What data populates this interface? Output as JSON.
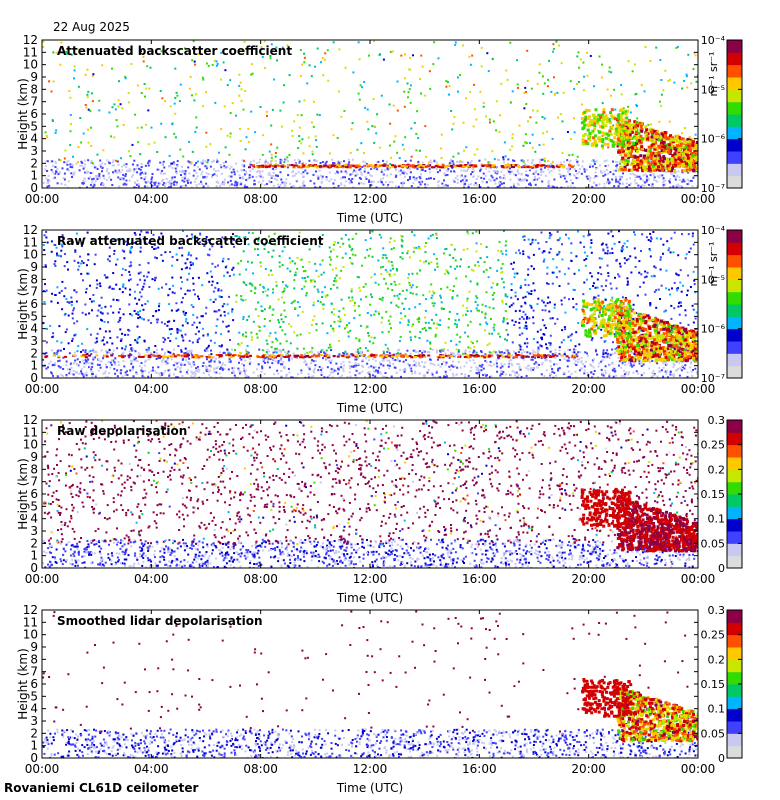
{
  "header": {
    "date": "22 Aug 2025"
  },
  "footer": {
    "station": "Rovaniemi CL61D ceilometer"
  },
  "colors": {
    "colormap": [
      "#dcdcdc",
      "#c8c8f0",
      "#4040ff",
      "#0000cc",
      "#00b4ff",
      "#00c864",
      "#32dc00",
      "#c8e600",
      "#ffc800",
      "#ff5000",
      "#d20000",
      "#8c0046"
    ],
    "frame": "#000000",
    "background": "#ffffff"
  },
  "chart_data": [
    {
      "type": "heatmap",
      "title": "Attenuated backscatter coefficient",
      "xlabel": "Time (UTC)",
      "ylabel": "Height (km)",
      "xticks": [
        "00:00",
        "04:00",
        "08:00",
        "12:00",
        "16:00",
        "20:00",
        "00:00"
      ],
      "xlim_hours": [
        0,
        24
      ],
      "yticks": [
        "0",
        "1",
        "2",
        "3",
        "4",
        "5",
        "6",
        "7",
        "8",
        "9",
        "10",
        "11",
        "12"
      ],
      "ylim": [
        0,
        12
      ],
      "colorbar": {
        "scale": "log",
        "range": [
          1e-07,
          0.0001
        ],
        "unit": "m⁻¹ sr⁻¹",
        "ticks": [
          "10⁻⁷",
          "10⁻⁶",
          "10⁻⁵",
          "10⁻⁴"
        ]
      },
      "kind": "backscatter",
      "noise_level": 0.35,
      "features": [
        {
          "name": "boundary layer",
          "t": [
            0,
            24
          ],
          "h": [
            0,
            2.5
          ],
          "level": "low"
        },
        {
          "name": "thin cloud layer",
          "t": [
            7.5,
            19.5
          ],
          "h": [
            1.7,
            2.0
          ],
          "level": "high"
        },
        {
          "name": "mid-level cloud",
          "t": [
            19.5,
            21.5
          ],
          "h": [
            3.5,
            6.5
          ],
          "level": "mid"
        },
        {
          "name": "dense cloud",
          "t": [
            21,
            24
          ],
          "h": [
            1.5,
            6.0
          ],
          "level": "very high"
        }
      ]
    },
    {
      "type": "heatmap",
      "title": "Raw attenuated backscatter coefficient",
      "xlabel": "Time (UTC)",
      "ylabel": "Height (km)",
      "xticks": [
        "00:00",
        "04:00",
        "08:00",
        "12:00",
        "16:00",
        "20:00",
        "00:00"
      ],
      "xlim_hours": [
        0,
        24
      ],
      "yticks": [
        "0",
        "1",
        "2",
        "3",
        "4",
        "5",
        "6",
        "7",
        "8",
        "9",
        "10",
        "11",
        "12"
      ],
      "ylim": [
        0,
        12
      ],
      "colorbar": {
        "scale": "log",
        "range": [
          1e-07,
          0.0001
        ],
        "unit": "m⁻¹ sr⁻¹",
        "ticks": [
          "10⁻⁷",
          "10⁻⁶",
          "10⁻⁵",
          "10⁻⁴"
        ]
      },
      "kind": "raw",
      "noise_level": 1.0,
      "features": [
        {
          "name": "daytime noise",
          "t": [
            7,
            17
          ],
          "h": [
            0,
            12
          ],
          "level": "noise"
        },
        {
          "name": "thin cloud layer",
          "t": [
            0,
            24
          ],
          "h": [
            1.7,
            2.0
          ],
          "level": "high"
        },
        {
          "name": "dense cloud",
          "t": [
            21,
            24
          ],
          "h": [
            1.5,
            6.0
          ],
          "level": "very high"
        }
      ]
    },
    {
      "type": "heatmap",
      "title": "Raw depolarisation",
      "xlabel": "Time (UTC)",
      "ylabel": "Height (km)",
      "xticks": [
        "00:00",
        "04:00",
        "08:00",
        "12:00",
        "16:00",
        "20:00",
        "00:00"
      ],
      "xlim_hours": [
        0,
        24
      ],
      "yticks": [
        "0",
        "1",
        "2",
        "3",
        "4",
        "5",
        "6",
        "7",
        "8",
        "9",
        "10",
        "11",
        "12"
      ],
      "ylim": [
        0,
        12
      ],
      "colorbar": {
        "scale": "linear",
        "range": [
          0,
          0.3
        ],
        "unit": "",
        "ticks": [
          "0",
          "0.05",
          "0.1",
          "0.15",
          "0.2",
          "0.25",
          "0.3"
        ]
      },
      "kind": "depol_raw",
      "noise_level": 1.0,
      "features": [
        {
          "name": "noise field",
          "t": [
            0,
            24
          ],
          "h": [
            2,
            12
          ],
          "level": "saturated"
        },
        {
          "name": "boundary layer",
          "t": [
            0,
            24
          ],
          "h": [
            0,
            2.5
          ],
          "level": "low"
        }
      ]
    },
    {
      "type": "heatmap",
      "title": "Smoothed lidar depolarisation",
      "xlabel": "Time (UTC)",
      "ylabel": "Height (km)",
      "xticks": [
        "00:00",
        "04:00",
        "08:00",
        "12:00",
        "16:00",
        "20:00",
        "00:00"
      ],
      "xlim_hours": [
        0,
        24
      ],
      "yticks": [
        "0",
        "1",
        "2",
        "3",
        "4",
        "5",
        "6",
        "7",
        "8",
        "9",
        "10",
        "11",
        "12"
      ],
      "ylim": [
        0,
        12
      ],
      "colorbar": {
        "scale": "linear",
        "range": [
          0,
          0.3
        ],
        "unit": "",
        "ticks": [
          "0",
          "0.05",
          "0.1",
          "0.15",
          "0.2",
          "0.25",
          "0.3"
        ]
      },
      "kind": "depol_smooth",
      "noise_level": 0.1,
      "features": [
        {
          "name": "boundary layer",
          "t": [
            0,
            24
          ],
          "h": [
            0,
            2.5
          ],
          "level": "low"
        },
        {
          "name": "mid-level cloud",
          "t": [
            19.5,
            21.5
          ],
          "h": [
            3.5,
            6.5
          ],
          "level": "high"
        },
        {
          "name": "dense cloud",
          "t": [
            21,
            24
          ],
          "h": [
            1.5,
            6.0
          ],
          "level": "very high"
        }
      ]
    }
  ]
}
